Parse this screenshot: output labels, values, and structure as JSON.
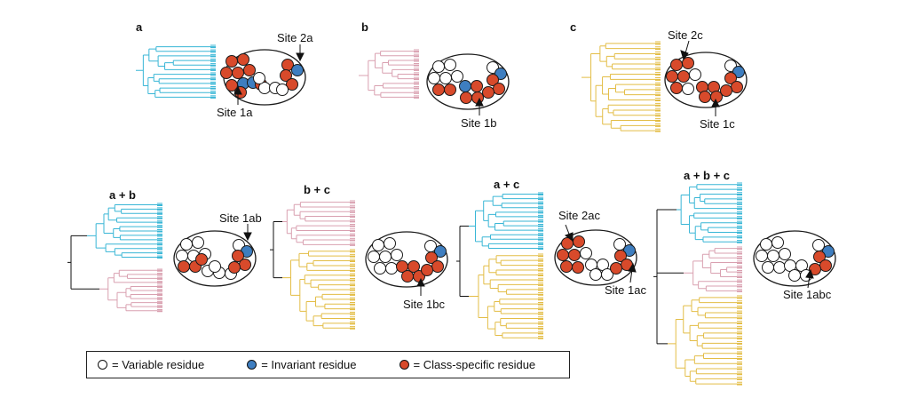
{
  "colors": {
    "tree_a": "#39b6d6",
    "tree_b": "#d9a0b0",
    "tree_c": "#e3bd46",
    "variable": "#ffffff",
    "invariant": "#3e7ec0",
    "class_specific": "#d84a2b",
    "outline": "#1a1a1a"
  },
  "panels": [
    {
      "id": "a",
      "title": "a",
      "trees": [
        "a"
      ],
      "sites": [
        "Site 2a",
        "Site 1a"
      ]
    },
    {
      "id": "b",
      "title": "b",
      "trees": [
        "b"
      ],
      "sites": [
        "Site 1b"
      ]
    },
    {
      "id": "c",
      "title": "c",
      "trees": [
        "c"
      ],
      "sites": [
        "Site 2c",
        "Site 1c"
      ]
    },
    {
      "id": "ab",
      "title": "a + b",
      "trees": [
        "a",
        "b"
      ],
      "sites": [
        "Site 1ab"
      ]
    },
    {
      "id": "bc",
      "title": "b + c",
      "trees": [
        "b",
        "c"
      ],
      "sites": [
        "Site 1bc"
      ]
    },
    {
      "id": "ac",
      "title": "a + c",
      "trees": [
        "a",
        "c"
      ],
      "sites": [
        "Site 2ac",
        "Site 1ac"
      ]
    },
    {
      "id": "abc",
      "title": "a + b + c",
      "trees": [
        "a",
        "b",
        "c"
      ],
      "sites": [
        "Site 1abc"
      ]
    }
  ],
  "legend": {
    "variable": "= Variable residue",
    "invariant": "= Invariant residue",
    "class_specific": "= Class-specific residue"
  }
}
